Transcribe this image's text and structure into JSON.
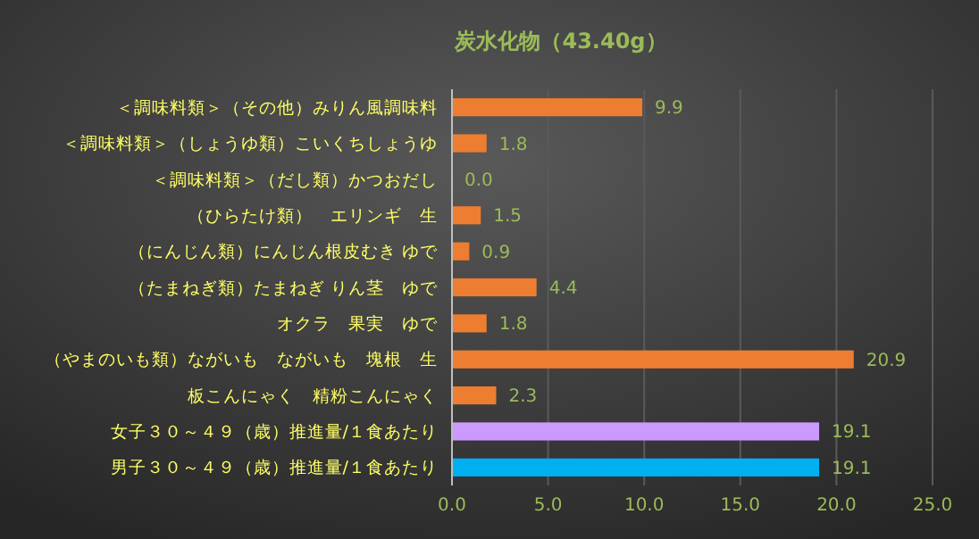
{
  "chart_data": {
    "type": "bar",
    "orientation": "horizontal",
    "title": "炭水化物（43.40g）",
    "categories": [
      "＜調味料類＞（その他）みりん風調味料",
      "＜調味料類＞（しょうゆ類）こいくちしょうゆ",
      "＜調味料類＞（だし類）かつおだし",
      "（ひらたけ類）　エリンギ　生",
      "（にんじん類）にんじん根皮むき ゆで",
      "（たまねぎ類）たまねぎ りん茎　ゆで",
      "オクラ　果実　ゆで",
      "（やまのいも類）ながいも　ながいも　塊根　生",
      "板こんにゃく　精粉こんにゃく",
      "女子３０～４９（歳）推進量/１食あたり",
      "男子３０～４９（歳）推進量/１食あたり"
    ],
    "values": [
      9.9,
      1.8,
      0.0,
      1.5,
      0.9,
      4.4,
      1.8,
      20.9,
      2.3,
      19.1,
      19.1
    ],
    "colors": [
      "#ed7d31",
      "#ed7d31",
      "#ed7d31",
      "#ed7d31",
      "#ed7d31",
      "#ed7d31",
      "#ed7d31",
      "#ed7d31",
      "#ed7d31",
      "#cc99ff",
      "#00b0f0"
    ],
    "value_labels": [
      "9.9",
      "1.8",
      "0.0",
      "1.5",
      "0.9",
      "4.4",
      "1.8",
      "20.9",
      "2.3",
      "19.1",
      "19.1"
    ],
    "xlim": [
      0,
      25
    ],
    "xticks": [
      {
        "value": 0,
        "label": "0.0"
      },
      {
        "value": 5,
        "label": "5.0"
      },
      {
        "value": 10,
        "label": "10.0"
      },
      {
        "value": 15,
        "label": "15.0"
      },
      {
        "value": 20,
        "label": "20.0"
      },
      {
        "value": 25,
        "label": "25.0"
      }
    ],
    "grid": "x"
  }
}
